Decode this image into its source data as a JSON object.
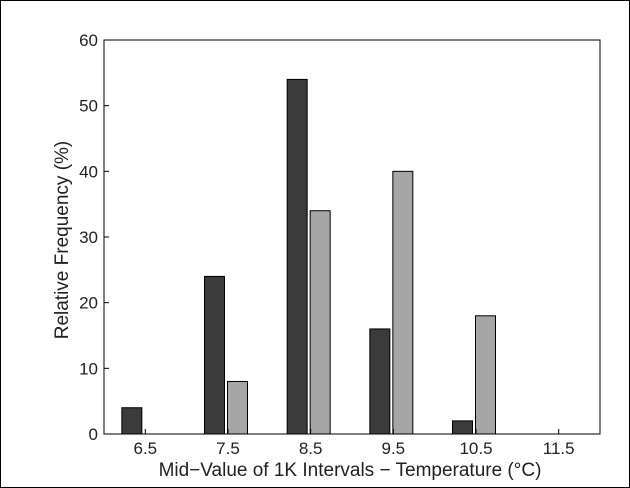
{
  "chart_data": {
    "type": "bar",
    "categories": [
      "6.5",
      "7.5",
      "8.5",
      "9.5",
      "10.5",
      "11.5"
    ],
    "series": [
      {
        "values": [
          4,
          24,
          54,
          16,
          2,
          0
        ],
        "color": "#3b3b3b"
      },
      {
        "values": [
          0,
          8,
          34,
          40,
          18,
          0
        ],
        "color": "#a6a6a6"
      }
    ],
    "xlabel": "Mid−Value of 1K Intervals − Temperature (°C)",
    "ylabel": "Relative Frequency (%)",
    "ylim": [
      0,
      60
    ],
    "yticks": [
      "0",
      "10",
      "20",
      "30",
      "40",
      "50",
      "60"
    ],
    "grid": false
  }
}
